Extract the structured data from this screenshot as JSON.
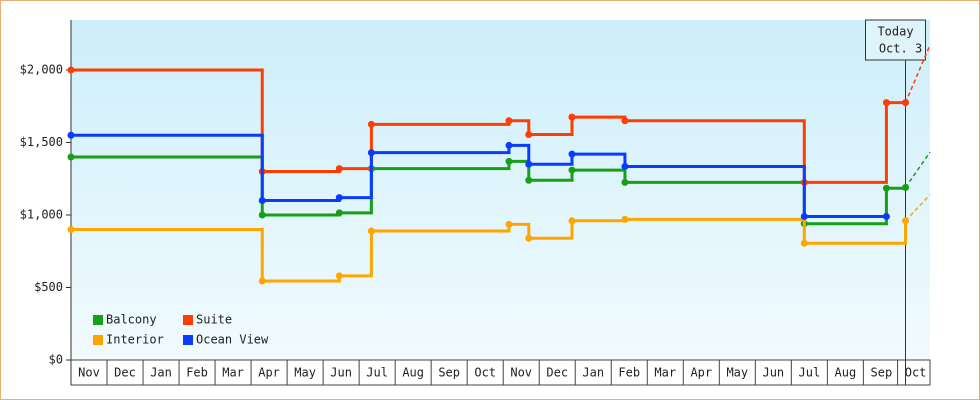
{
  "chart_data": {
    "type": "step",
    "xlim": [
      0,
      23.85
    ],
    "ylim": [
      0,
      2345
    ],
    "xticks": [
      {
        "value": 0.5,
        "label": "Nov"
      },
      {
        "value": 1.5,
        "label": "Dec"
      },
      {
        "value": 2.5,
        "label": "Jan"
      },
      {
        "value": 3.5,
        "label": "Feb"
      },
      {
        "value": 4.5,
        "label": "Mar"
      },
      {
        "value": 5.5,
        "label": "Apr"
      },
      {
        "value": 6.5,
        "label": "May"
      },
      {
        "value": 7.5,
        "label": "Jun"
      },
      {
        "value": 8.5,
        "label": "Jul"
      },
      {
        "value": 9.5,
        "label": "Aug"
      },
      {
        "value": 10.5,
        "label": "Sep"
      },
      {
        "value": 11.5,
        "label": "Oct"
      },
      {
        "value": 12.5,
        "label": "Nov"
      },
      {
        "value": 13.5,
        "label": "Dec"
      },
      {
        "value": 14.5,
        "label": "Jan"
      },
      {
        "value": 15.5,
        "label": "Feb"
      },
      {
        "value": 16.5,
        "label": "Mar"
      },
      {
        "value": 17.5,
        "label": "Apr"
      },
      {
        "value": 18.5,
        "label": "May"
      },
      {
        "value": 19.5,
        "label": "Jun"
      },
      {
        "value": 20.5,
        "label": "Jul"
      },
      {
        "value": 21.5,
        "label": "Aug"
      },
      {
        "value": 22.5,
        "label": "Sep"
      },
      {
        "value": 23.45,
        "label": "Oct"
      }
    ],
    "yticks": [
      {
        "value": 0,
        "label": "$0"
      },
      {
        "value": 500,
        "label": "$500"
      },
      {
        "value": 1000,
        "label": "$1,000"
      },
      {
        "value": 1500,
        "label": "$1,500"
      },
      {
        "value": 2000,
        "label": "$2,000"
      }
    ],
    "annotation": {
      "x": 23.17,
      "lines": [
        "Today",
        "Oct. 3"
      ]
    },
    "series": [
      {
        "name": "Balcony",
        "color": "#16a016",
        "x": [
          0,
          5.31,
          7.45,
          8.34,
          12.16,
          12.71,
          13.91,
          15.38,
          20.36,
          22.64,
          23.17
        ],
        "values": [
          1400,
          1000,
          1015,
          1320,
          1370,
          1240,
          1310,
          1225,
          940,
          1185,
          1190
        ],
        "forecast": {
          "x": 23.85,
          "value": 1434
        }
      },
      {
        "name": "Suite",
        "color": "#ff3d00",
        "x": [
          0,
          5.31,
          7.45,
          8.34,
          12.16,
          12.71,
          13.91,
          15.38,
          20.36,
          22.64,
          23.17
        ],
        "values": [
          2000,
          1300,
          1320,
          1625,
          1650,
          1555,
          1675,
          1650,
          1225,
          1775,
          1775
        ],
        "forecast": {
          "x": 23.85,
          "value": 2172
        }
      },
      {
        "name": "Interior",
        "color": "#ffa500",
        "x": [
          0,
          5.31,
          7.45,
          8.34,
          12.16,
          12.71,
          13.91,
          15.38,
          20.36,
          23.17
        ],
        "values": [
          900,
          545,
          580,
          890,
          935,
          840,
          960,
          970,
          805,
          960
        ],
        "forecast": {
          "x": 23.85,
          "value": 1140
        }
      },
      {
        "name": "Ocean View",
        "color": "#0a3cff",
        "x": [
          0,
          5.31,
          7.45,
          8.34,
          12.16,
          12.71,
          13.91,
          15.38,
          20.36,
          22.64
        ],
        "values": [
          1550,
          1100,
          1120,
          1430,
          1480,
          1350,
          1420,
          1335,
          990,
          990
        ]
      }
    ]
  }
}
